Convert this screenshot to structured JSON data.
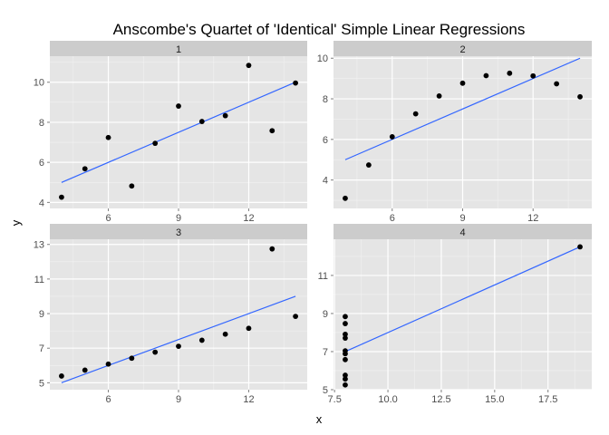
{
  "chart_data": {
    "type": "scatter",
    "title": "Anscombe's Quartet of 'Identical' Simple Linear Regressions",
    "xlabel": "x",
    "ylabel": "y",
    "facet_layout": "2x2, free scales",
    "grid": true,
    "point_color": "#000000",
    "line_color": "#3366ff",
    "panel_bg": "#e5e5e5",
    "strip_bg": "#cccccc",
    "grid_major_color": "#ffffff",
    "grid_minor_color": "#f2f2f2",
    "panels": [
      {
        "label": "1",
        "xlim": [
          3.5,
          14.5
        ],
        "ylim": [
          3.7,
          11.3
        ],
        "xticks": [
          6,
          9,
          12
        ],
        "xtick_labels": [
          "6",
          "9",
          "12"
        ],
        "yticks": [
          4,
          6,
          8,
          10
        ],
        "ytick_labels": [
          "4",
          "6",
          "8",
          "10"
        ],
        "show_x_ticks": true,
        "points": [
          [
            4,
            4.26
          ],
          [
            5,
            5.68
          ],
          [
            6,
            7.24
          ],
          [
            7,
            4.82
          ],
          [
            8,
            6.95
          ],
          [
            9,
            8.81
          ],
          [
            10,
            8.04
          ],
          [
            11,
            8.33
          ],
          [
            12,
            10.84
          ],
          [
            13,
            7.58
          ],
          [
            14,
            9.96
          ]
        ],
        "fit": {
          "x": [
            4,
            14
          ],
          "y": [
            5.0,
            10.0
          ]
        }
      },
      {
        "label": "2",
        "xlim": [
          3.5,
          14.5
        ],
        "ylim": [
          2.6,
          10.1
        ],
        "xticks": [
          6,
          9,
          12
        ],
        "xtick_labels": [
          "6",
          "9",
          "12"
        ],
        "yticks": [
          4,
          6,
          8,
          10
        ],
        "ytick_labels": [
          "4",
          "6",
          "8",
          "10"
        ],
        "show_x_ticks": true,
        "points": [
          [
            4,
            3.1
          ],
          [
            5,
            4.74
          ],
          [
            6,
            6.13
          ],
          [
            7,
            7.26
          ],
          [
            8,
            8.14
          ],
          [
            9,
            8.77
          ],
          [
            10,
            9.14
          ],
          [
            11,
            9.26
          ],
          [
            12,
            9.13
          ],
          [
            13,
            8.74
          ],
          [
            14,
            8.1
          ]
        ],
        "fit": {
          "x": [
            4,
            14
          ],
          "y": [
            5.0,
            10.0
          ]
        }
      },
      {
        "label": "3",
        "xlim": [
          3.5,
          14.5
        ],
        "ylim": [
          4.6,
          13.3
        ],
        "xticks": [
          6,
          9,
          12
        ],
        "xtick_labels": [
          "6",
          "9",
          "12"
        ],
        "yticks": [
          5,
          7,
          9,
          11,
          13
        ],
        "ytick_labels": [
          "5",
          "7",
          "9",
          "11",
          "13"
        ],
        "show_x_ticks": true,
        "points": [
          [
            4,
            5.39
          ],
          [
            5,
            5.73
          ],
          [
            6,
            6.08
          ],
          [
            7,
            6.42
          ],
          [
            8,
            6.77
          ],
          [
            9,
            7.11
          ],
          [
            10,
            7.46
          ],
          [
            11,
            7.81
          ],
          [
            12,
            8.15
          ],
          [
            13,
            12.74
          ],
          [
            14,
            8.84
          ]
        ],
        "fit": {
          "x": [
            4,
            14
          ],
          "y": [
            5.0,
            10.0
          ]
        }
      },
      {
        "label": "4",
        "xlim": [
          7.45,
          19.55
        ],
        "ylim": [
          5.0,
          12.9
        ],
        "xticks": [
          7.5,
          10,
          12.5,
          15,
          17.5
        ],
        "xtick_labels": [
          "7.5",
          "10.0",
          "12.5",
          "15.0",
          "17.5"
        ],
        "yticks": [
          5,
          7,
          9,
          11
        ],
        "ytick_labels": [
          "5",
          "7",
          "9",
          "11"
        ],
        "show_x_ticks": true,
        "points": [
          [
            8,
            6.58
          ],
          [
            8,
            5.76
          ],
          [
            8,
            7.71
          ],
          [
            8,
            8.84
          ],
          [
            8,
            8.47
          ],
          [
            8,
            7.04
          ],
          [
            8,
            5.25
          ],
          [
            19,
            12.5
          ],
          [
            8,
            5.56
          ],
          [
            8,
            7.91
          ],
          [
            8,
            6.89
          ]
        ],
        "fit": {
          "x": [
            8,
            19
          ],
          "y": [
            7.0,
            12.5
          ]
        }
      }
    ]
  }
}
